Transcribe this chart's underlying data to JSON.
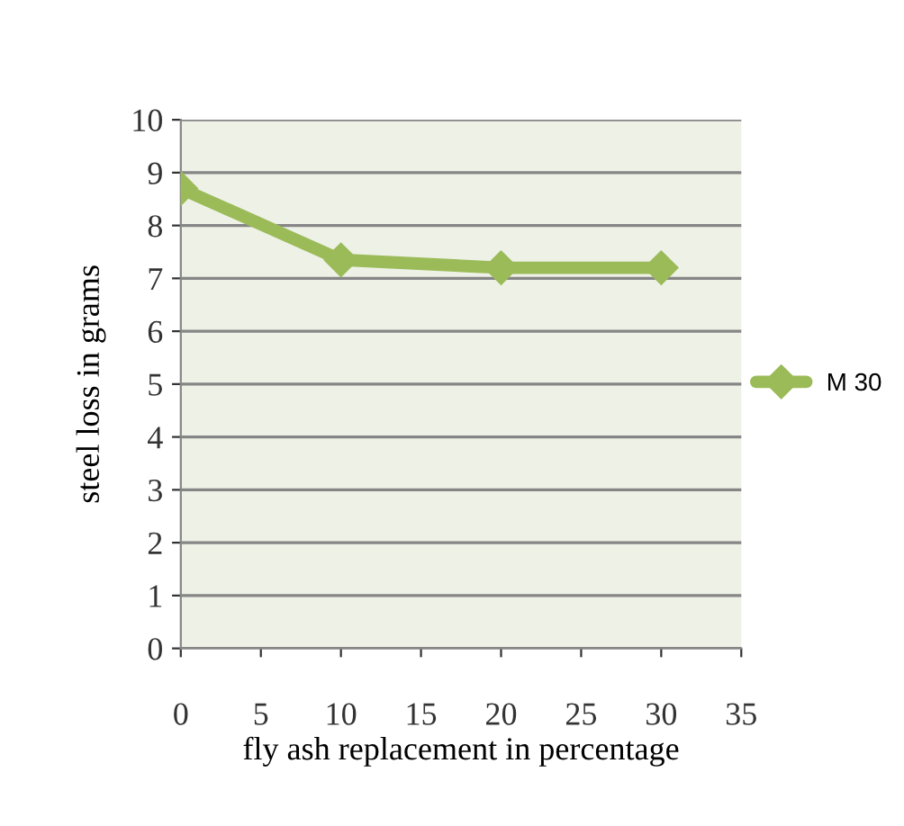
{
  "chart_data": {
    "type": "line",
    "xlabel": "fly ash replacement in percentage",
    "ylabel": "steel loss in grams",
    "x": [
      0,
      10,
      20,
      30
    ],
    "series": [
      {
        "name": "M 30",
        "color": "#9bbb59",
        "values": [
          8.7,
          7.35,
          7.2,
          7.2
        ]
      }
    ],
    "xlim": [
      0,
      35
    ],
    "xticks": [
      0,
      5,
      10,
      15,
      20,
      25,
      30,
      35
    ],
    "ylim": [
      0,
      10
    ],
    "yticks": [
      0,
      1,
      2,
      3,
      4,
      5,
      6,
      7,
      8,
      9,
      10
    ],
    "grid": "y",
    "legend": "right",
    "marker": "diamond",
    "line_style": "solid"
  }
}
